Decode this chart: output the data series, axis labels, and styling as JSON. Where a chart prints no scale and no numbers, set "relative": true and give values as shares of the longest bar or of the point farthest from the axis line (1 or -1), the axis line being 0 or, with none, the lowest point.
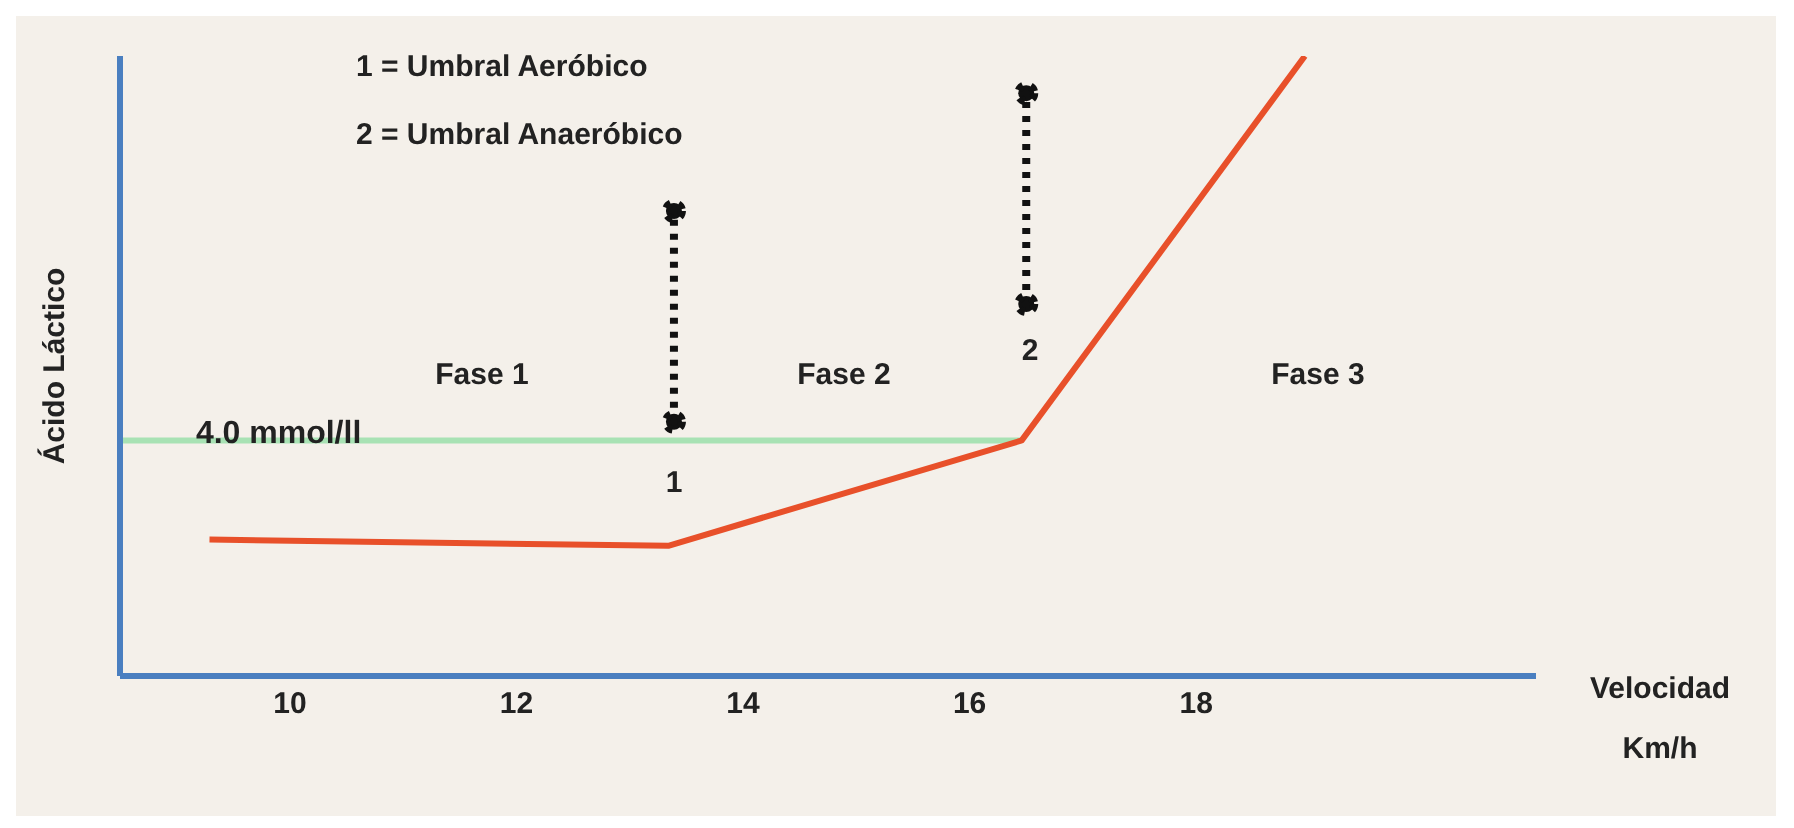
{
  "chart_data": {
    "type": "line",
    "relative": true,
    "xlabel": "Velocidad Km/h",
    "ylabel": "Ácido Láctico",
    "xlim": [
      8.5,
      21
    ],
    "xticks": [
      10,
      12,
      14,
      16,
      18
    ],
    "legend": false,
    "grid": false,
    "series": [
      {
        "color": "#a8e2b4",
        "x": [
          8.5,
          16.46
        ],
        "values": [
          0.38,
          0.38
        ],
        "marker": "none",
        "line_style": "solid"
      },
      {
        "color": "#e8502a",
        "x": [
          9.29,
          13.34,
          16.46,
          18.96
        ],
        "values": [
          0.22,
          0.21,
          0.38,
          1
        ],
        "marker": "none",
        "line_style": "solid"
      },
      {
        "color": "#111111",
        "x": [
          13.39,
          13.39
        ],
        "values": [
          0.41,
          0.75
        ],
        "marker": "circle",
        "line_style": "dotted"
      },
      {
        "color": "#111111",
        "x": [
          16.5,
          16.5
        ],
        "values": [
          0.6,
          0.94
        ],
        "marker": "circle",
        "line_style": "dotted"
      }
    ],
    "annotations": [
      "1 = Umbral Aeróbico",
      "2 = Umbral Anaeróbico",
      {
        "text": "4.0 mmol/ll",
        "x": 9.9,
        "y": 0.39
      },
      "1",
      "2",
      "Fase 1",
      "Fase 2",
      "Fase 3"
    ]
  }
}
